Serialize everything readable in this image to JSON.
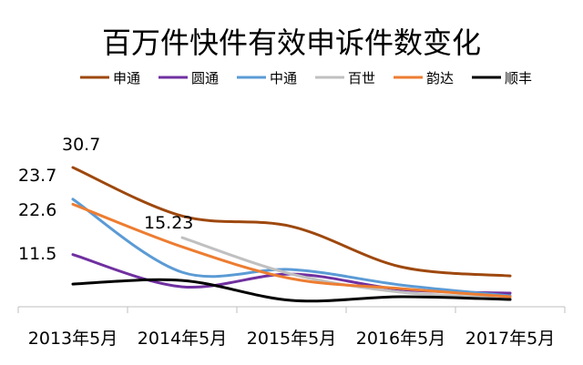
{
  "chart_data": {
    "type": "line",
    "title": "百万件快件有效申诉件数变化",
    "categories": [
      "2013年5月",
      "2014年5月",
      "2015年5月",
      "2016年5月",
      "2017年5月"
    ],
    "ylim": [
      0,
      32
    ],
    "grid": false,
    "legend_position": "top",
    "series": [
      {
        "name": "申通",
        "color": "#9E480E",
        "values": [
          30.7,
          20,
          17.7,
          8.8,
          6.8
        ]
      },
      {
        "name": "圆通",
        "color": "#7030A0",
        "values": [
          11.5,
          4.4,
          7.2,
          3.8,
          3
        ]
      },
      {
        "name": "中通",
        "color": "#5B9BD5",
        "values": [
          23.7,
          7.6,
          8.2,
          4.8,
          2.4
        ]
      },
      {
        "name": "百世",
        "color": "#C0C0C0",
        "values": [
          null,
          15.23,
          7.2,
          3.2,
          2
        ]
      },
      {
        "name": "韵达",
        "color": "#ED7D31",
        "values": [
          22.6,
          13.2,
          6.2,
          4,
          2.2
        ]
      },
      {
        "name": "顺丰",
        "color": "#000000",
        "values": [
          5,
          5.8,
          1.4,
          2.2,
          1.6
        ]
      }
    ],
    "data_labels": [
      {
        "text": "30.7",
        "series": "申通",
        "index": 0
      },
      {
        "text": "23.7",
        "series": "中通",
        "index": 0
      },
      {
        "text": "22.6",
        "series": "韵达",
        "index": 0
      },
      {
        "text": "11.5",
        "series": "圆通",
        "index": 0
      },
      {
        "text": "15.23",
        "series": "百世",
        "index": 1
      }
    ]
  }
}
